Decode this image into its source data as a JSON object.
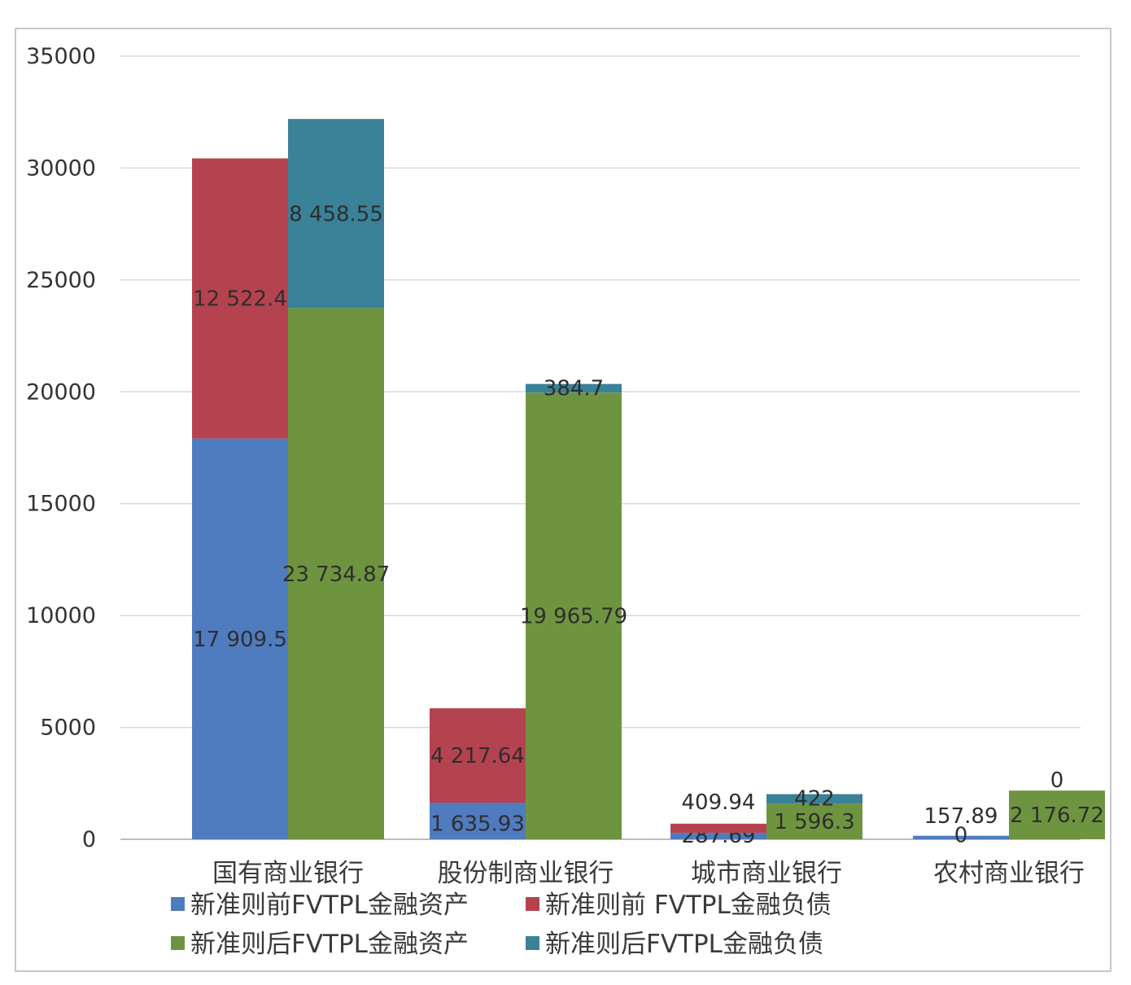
{
  "chart_data": {
    "type": "bar",
    "stacked": true,
    "grouped": true,
    "categories": [
      "国有商业银行",
      "股份制商业银行",
      "城市商业银行",
      "农村商业银行"
    ],
    "yticks": [
      "35000",
      "30000",
      "25000",
      "20000",
      "15000",
      "10000",
      "5000",
      "0"
    ],
    "ylim": [
      0,
      35000
    ],
    "grid": true,
    "legend_position": "bottom",
    "colors": {
      "before_assets": "#4f7bbf",
      "before_liabilities": "#b5434f",
      "after_assets": "#6f9440",
      "after_liabilities": "#3a8297"
    },
    "groups": [
      {
        "stack": "before",
        "series": [
          {
            "key": "before_assets",
            "name": "新准则前FVTPL金融资产",
            "values": [
              17909.5,
              1635.93,
              287.69,
              157.89
            ],
            "labels": [
              "17 909.5",
              "1 635.93",
              "287.69",
              "157.89"
            ]
          },
          {
            "key": "before_liabilities",
            "name": "新准则前 FVTPL金融负债",
            "values": [
              12522.4,
              4217.64,
              409.94,
              0
            ],
            "labels": [
              "12 522.4",
              "4 217.64",
              "409.94",
              "0"
            ]
          }
        ]
      },
      {
        "stack": "after",
        "series": [
          {
            "key": "after_assets",
            "name": "新准则后FVTPL金融资产",
            "values": [
              23734.87,
              19965.79,
              1596.3,
              2176.72
            ],
            "labels": [
              "23 734.87",
              "19 965.79",
              "1 596.3",
              "2 176.72"
            ]
          },
          {
            "key": "after_liabilities",
            "name": "新准则后FVTPL金融负债",
            "values": [
              8458.55,
              384.7,
              422,
              0
            ],
            "labels": [
              "8 458.55",
              "384.7",
              "422",
              "0"
            ]
          }
        ]
      }
    ],
    "legend": [
      "新准则前FVTPL金融资产",
      "新准则前 FVTPL金融负债",
      "新准则后FVTPL金融资产",
      "新准则后FVTPL金融负债"
    ]
  }
}
